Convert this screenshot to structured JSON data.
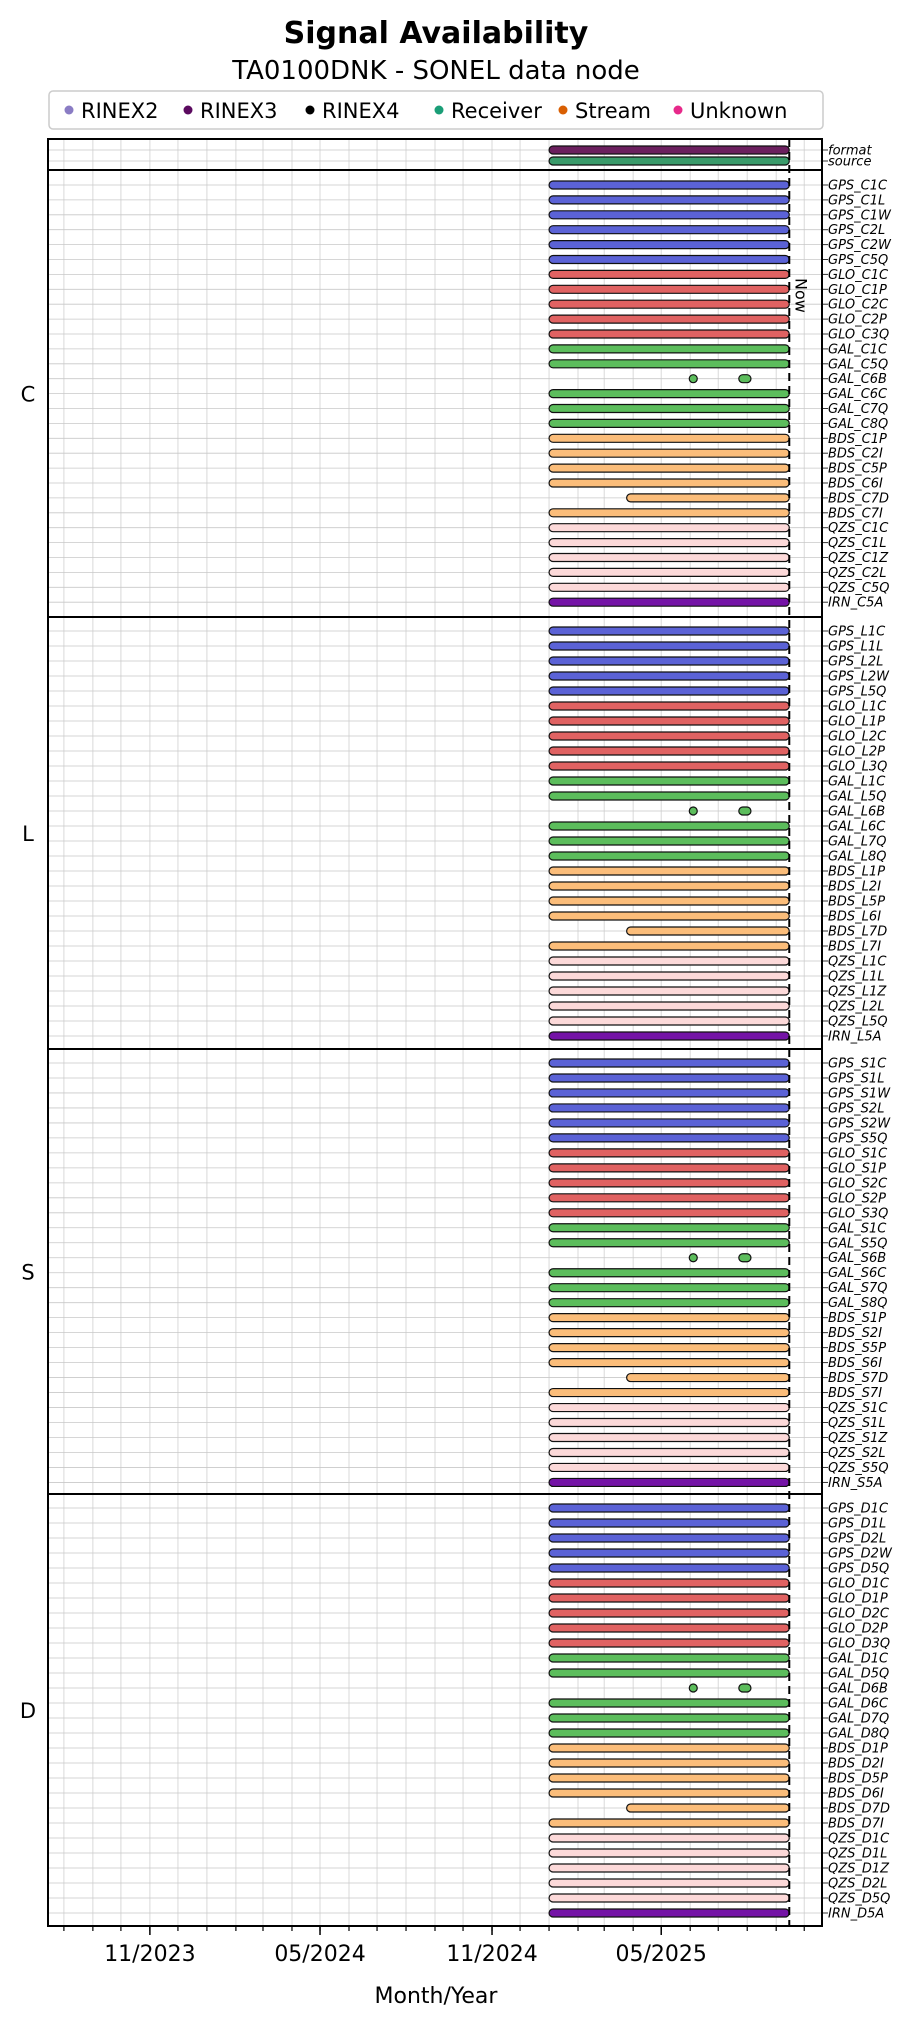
{
  "chart_data": {
    "type": "timeline",
    "title": "Signal Availability",
    "subtitle": "TA0100DNK - SONEL data node",
    "xlabel": "Month/Year",
    "x_ticks": [
      "11/2023",
      "05/2024",
      "11/2024",
      "05/2025"
    ],
    "xlim": [
      "2023-07-15",
      "2025-10-20"
    ],
    "now_date": "2025-09-15",
    "now_label": "Now",
    "grid": true,
    "legend_position": "top",
    "legend": [
      {
        "name": "RINEX2",
        "color": "#8a7cc4"
      },
      {
        "name": "RINEX3",
        "color": "#5b0a5f"
      },
      {
        "name": "RINEX4",
        "color": "#000000"
      },
      {
        "name": "Receiver",
        "color": "#1a9e77"
      },
      {
        "name": "Stream",
        "color": "#d95f02"
      },
      {
        "name": "Unknown",
        "color": "#e7298a"
      }
    ],
    "system_colors": {
      "format": "#6b1f5e",
      "source": "#3a9a6a",
      "GPS": "#5b62d6",
      "GLO": "#e06262",
      "GAL": "#5cbd5c",
      "BDS": "#fbbd7a",
      "QZS": "#fcd9d9",
      "IRN": "#7413a6"
    },
    "default_span": [
      "2025-01-01",
      "2025-09-15"
    ],
    "span_7d": [
      "2025-03-25",
      "2025-09-15"
    ],
    "span_6b": [
      {
        "start": "2025-05-31",
        "end": "2025-06-02"
      },
      {
        "start": "2025-07-23",
        "end": "2025-08-05"
      }
    ],
    "header_rows": [
      {
        "label": "format",
        "system": "format"
      },
      {
        "label": "source",
        "system": "source"
      }
    ],
    "groups": [
      {
        "name": "C",
        "signals": [
          "GPS_C1C",
          "GPS_C1L",
          "GPS_C1W",
          "GPS_C2L",
          "GPS_C2W",
          "GPS_C5Q",
          "GLO_C1C",
          "GLO_C1P",
          "GLO_C2C",
          "GLO_C2P",
          "GLO_C3Q",
          "GAL_C1C",
          "GAL_C5Q",
          "GAL_C6B",
          "GAL_C6C",
          "GAL_C7Q",
          "GAL_C8Q",
          "BDS_C1P",
          "BDS_C2I",
          "BDS_C5P",
          "BDS_C6I",
          "BDS_C7D",
          "BDS_C7I",
          "QZS_C1C",
          "QZS_C1L",
          "QZS_C1Z",
          "QZS_C2L",
          "QZS_C5Q",
          "IRN_C5A"
        ]
      },
      {
        "name": "L",
        "signals": [
          "GPS_L1C",
          "GPS_L1L",
          "GPS_L2L",
          "GPS_L2W",
          "GPS_L5Q",
          "GLO_L1C",
          "GLO_L1P",
          "GLO_L2C",
          "GLO_L2P",
          "GLO_L3Q",
          "GAL_L1C",
          "GAL_L5Q",
          "GAL_L6B",
          "GAL_L6C",
          "GAL_L7Q",
          "GAL_L8Q",
          "BDS_L1P",
          "BDS_L2I",
          "BDS_L5P",
          "BDS_L6I",
          "BDS_L7D",
          "BDS_L7I",
          "QZS_L1C",
          "QZS_L1L",
          "QZS_L1Z",
          "QZS_L2L",
          "QZS_L5Q",
          "IRN_L5A"
        ]
      },
      {
        "name": "S",
        "signals": [
          "GPS_S1C",
          "GPS_S1L",
          "GPS_S1W",
          "GPS_S2L",
          "GPS_S2W",
          "GPS_S5Q",
          "GLO_S1C",
          "GLO_S1P",
          "GLO_S2C",
          "GLO_S2P",
          "GLO_S3Q",
          "GAL_S1C",
          "GAL_S5Q",
          "GAL_S6B",
          "GAL_S6C",
          "GAL_S7Q",
          "GAL_S8Q",
          "BDS_S1P",
          "BDS_S2I",
          "BDS_S5P",
          "BDS_S6I",
          "BDS_S7D",
          "BDS_S7I",
          "QZS_S1C",
          "QZS_S1L",
          "QZS_S1Z",
          "QZS_S2L",
          "QZS_S5Q",
          "IRN_S5A"
        ]
      },
      {
        "name": "D",
        "signals": [
          "GPS_D1C",
          "GPS_D1L",
          "GPS_D2L",
          "GPS_D2W",
          "GPS_D5Q",
          "GLO_D1C",
          "GLO_D1P",
          "GLO_D2C",
          "GLO_D2P",
          "GLO_D3Q",
          "GAL_D1C",
          "GAL_D5Q",
          "GAL_D6B",
          "GAL_D6C",
          "GAL_D7Q",
          "GAL_D8Q",
          "BDS_D1P",
          "BDS_D2I",
          "BDS_D5P",
          "BDS_D6I",
          "BDS_D7D",
          "BDS_D7I",
          "QZS_D1C",
          "QZS_D1L",
          "QZS_D1Z",
          "QZS_D2L",
          "QZS_D5Q",
          "IRN_D5A"
        ]
      }
    ]
  }
}
